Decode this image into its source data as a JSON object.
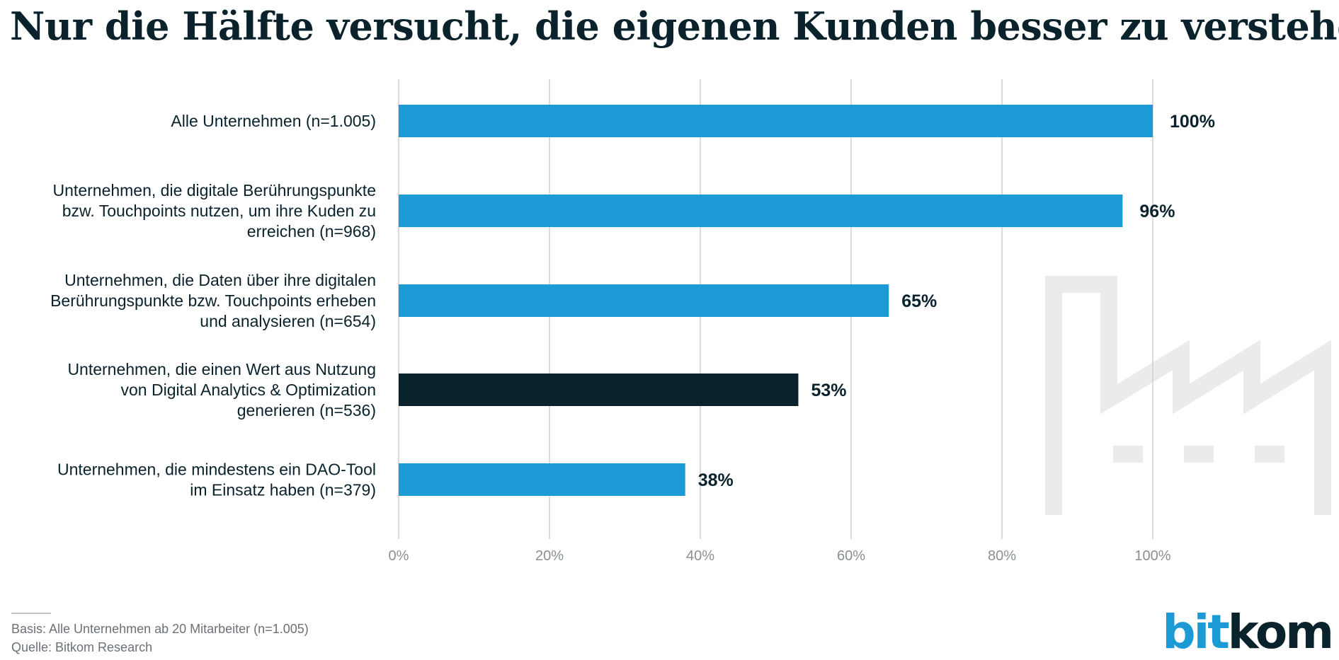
{
  "colors": {
    "bar_default": "#1c9ad6",
    "bar_highlight": "#0a222b",
    "grid": "#cfcfcf",
    "text": "#0a222b",
    "watermark": "#ebebeb"
  },
  "logo": {
    "part1": "bit",
    "part2": "kom"
  },
  "watermark": {
    "icon": "factory-icon"
  },
  "footer": {
    "basis": "Basis: Alle Unternehmen ab 20 Mitarbeiter (n=1.005)",
    "source": "Quelle: Bitkom Research"
  },
  "chart_data": {
    "type": "bar",
    "orientation": "horizontal",
    "title": "Nur die Hälfte versucht, die eigenen Kunden besser zu verstehen",
    "categories": [
      [
        "Alle Unternehmen (n=1.005)"
      ],
      [
        "Unternehmen, die digitale Berührungspunkte",
        "bzw. Touchpoints nutzen, um ihre Kuden zu",
        "erreichen (n=968)"
      ],
      [
        "Unternehmen, die Daten über ihre digitalen",
        "Berührungspunkte bzw. Touchpoints erheben",
        "und analysieren (n=654)"
      ],
      [
        "Unternehmen, die einen Wert aus Nutzung",
        "von Digital Analytics & Optimization",
        "generieren (n=536)"
      ],
      [
        "Unternehmen, die mindestens ein DAO-Tool",
        "im Einsatz haben (n=379)"
      ]
    ],
    "values": [
      100,
      96,
      65,
      53,
      38
    ],
    "value_labels": [
      "100%",
      "96%",
      "65%",
      "53%",
      "38%"
    ],
    "highlight_index": 3,
    "xlim": [
      0,
      100
    ],
    "ticks": [
      0,
      20,
      40,
      60,
      80,
      100
    ],
    "tick_labels": [
      "0%",
      "20%",
      "40%",
      "60%",
      "80%",
      "100%"
    ],
    "grid": true,
    "legend": "none"
  }
}
